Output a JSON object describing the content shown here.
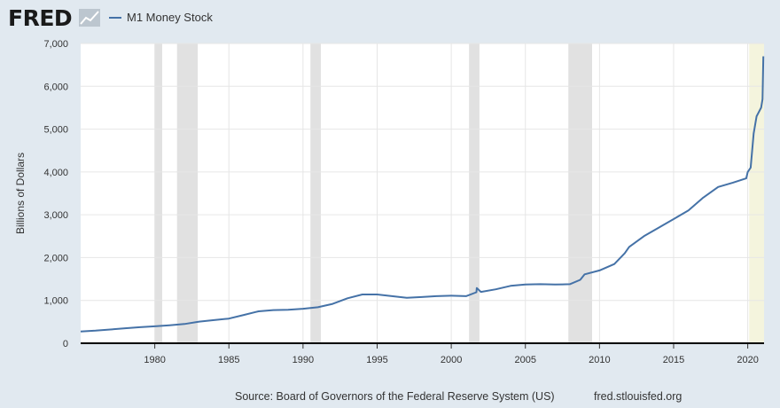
{
  "brand": {
    "logo_text": "FRED"
  },
  "legend": {
    "label": "M1 Money Stock",
    "color": "#4572a7"
  },
  "footer": {
    "source": "Source: Board of Governors of the Federal Reserve System (US)",
    "site": "fred.stlouisfed.org"
  },
  "colors": {
    "background": "#e1e9f0",
    "plot": "#ffffff",
    "line": "#4572a7",
    "recession": "#e1e1e1",
    "latest": "#f4f4dd"
  },
  "chart_data": {
    "type": "line",
    "ylabel": "Billions of Dollars",
    "xlim": [
      1975.0,
      2021.1
    ],
    "ylim": [
      0,
      7000
    ],
    "x_ticks": [
      1980,
      1985,
      1990,
      1995,
      2000,
      2005,
      2010,
      2015,
      2020
    ],
    "x_tick_labels": [
      "1980",
      "1985",
      "1990",
      "1995",
      "2000",
      "2005",
      "2010",
      "2015",
      "2020"
    ],
    "y_ticks": [
      0,
      1000,
      2000,
      3000,
      4000,
      5000,
      6000,
      7000
    ],
    "y_tick_labels": [
      "0",
      "1,000",
      "2,000",
      "3,000",
      "4,000",
      "5,000",
      "6,000",
      "7,000"
    ],
    "grid": true,
    "recession_periods": [
      [
        1980.0,
        1980.5
      ],
      [
        1981.5,
        1982.9
      ],
      [
        1990.5,
        1991.2
      ],
      [
        2001.2,
        2001.9
      ],
      [
        2007.9,
        2009.5
      ],
      [
        2020.1,
        2021.1
      ]
    ],
    "series": [
      {
        "name": "M1 Money Stock",
        "x": [
          1975.0,
          1976,
          1977,
          1978,
          1979,
          1980,
          1981,
          1982,
          1983,
          1984,
          1985,
          1986,
          1986.8,
          1987,
          1988,
          1989,
          1990,
          1991,
          1992,
          1993,
          1994,
          1995,
          1996,
          1997,
          1998,
          1999,
          2000,
          2001,
          2001.7,
          2001.72,
          2002,
          2003,
          2004,
          2005,
          2006,
          2007,
          2008,
          2008.7,
          2009,
          2010,
          2011,
          2011.7,
          2012,
          2013,
          2014,
          2015,
          2016,
          2017,
          2018,
          2019,
          2019.9,
          2020.0,
          2020.2,
          2020.4,
          2020.6,
          2020.9,
          2021.0,
          2021.05
        ],
        "y": [
          275,
          295,
          320,
          350,
          375,
          395,
          420,
          450,
          505,
          540,
          575,
          660,
          730,
          745,
          775,
          780,
          805,
          840,
          920,
          1050,
          1140,
          1140,
          1100,
          1060,
          1080,
          1100,
          1110,
          1100,
          1190,
          1290,
          1200,
          1260,
          1340,
          1370,
          1380,
          1370,
          1380,
          1480,
          1610,
          1700,
          1850,
          2100,
          2250,
          2500,
          2700,
          2900,
          3100,
          3400,
          3650,
          3750,
          3850,
          4000,
          4100,
          4900,
          5300,
          5500,
          5700,
          6700
        ]
      }
    ]
  }
}
